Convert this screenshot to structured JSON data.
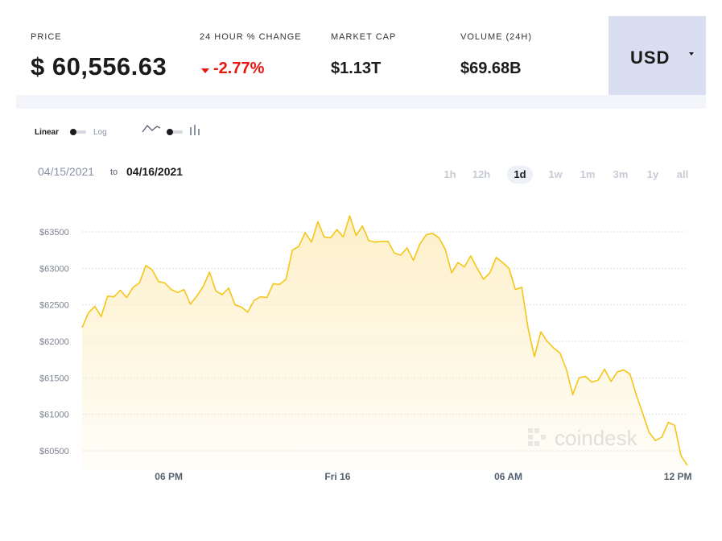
{
  "stats": {
    "price_label": "PRICE",
    "price_value": "$ 60,556.63",
    "change_label": "24 HOUR % CHANGE",
    "change_value": "-2.77%",
    "change_color": "#e7160f",
    "marketcap_label": "MARKET CAP",
    "marketcap_value": "$1.13T",
    "volume_label": "VOLUME (24H)",
    "volume_value": "$69.68B"
  },
  "currency": {
    "label": "USD",
    "icon": "caret-down-icon"
  },
  "controls": {
    "linear_label": "Linear",
    "log_label": "Log",
    "line_icon": "line-chart-icon",
    "bar_icon": "bar-chart-icon"
  },
  "date_range": {
    "start": "04/15/2021",
    "to": "to",
    "end": "04/16/2021"
  },
  "ranges": [
    {
      "label": "1h",
      "active": false
    },
    {
      "label": "12h",
      "active": false
    },
    {
      "label": "1d",
      "active": true
    },
    {
      "label": "1w",
      "active": false
    },
    {
      "label": "1m",
      "active": false
    },
    {
      "label": "3m",
      "active": false
    },
    {
      "label": "1y",
      "active": false
    },
    {
      "label": "all",
      "active": false
    }
  ],
  "watermark": "coindesk",
  "colors": {
    "line": "#f5c518",
    "fill_top": "#fdefc6",
    "grid": "#dde1e8",
    "active_range_bg": "#edf0f7"
  },
  "chart_data": {
    "type": "area",
    "title": "",
    "xlabel": "",
    "ylabel": "",
    "ylim": [
      60500,
      63500
    ],
    "y_ticks": [
      "$63500",
      "$63000",
      "$62500",
      "$62000",
      "$61500",
      "$61000",
      "$60500"
    ],
    "y_tick_values": [
      63500,
      63000,
      62500,
      62000,
      61500,
      61000,
      60500
    ],
    "x_ticks": [
      "06 PM",
      "Fri 16",
      "06 AM",
      "12 PM"
    ],
    "x_tick_index": [
      13.6,
      40.1,
      66.9,
      93.5
    ],
    "series": [
      {
        "values": [
          62190,
          62390,
          62480,
          62340,
          62620,
          62610,
          62700,
          62600,
          62740,
          62800,
          63040,
          62980,
          62820,
          62800,
          62710,
          62670,
          62710,
          62510,
          62620,
          62750,
          62950,
          62690,
          62640,
          62730,
          62500,
          62470,
          62400,
          62560,
          62610,
          62600,
          62790,
          62780,
          62850,
          63250,
          63300,
          63490,
          63360,
          63640,
          63430,
          63420,
          63530,
          63430,
          63720,
          63450,
          63580,
          63380,
          63360,
          63370,
          63370,
          63210,
          63180,
          63280,
          63110,
          63330,
          63460,
          63480,
          63420,
          63260,
          62940,
          63080,
          63020,
          63170,
          63000,
          62850,
          62940,
          63150,
          63080,
          63000,
          62710,
          62740,
          62180,
          61790,
          62130,
          62000,
          61910,
          61840,
          61620,
          61270,
          61500,
          61520,
          61440,
          61470,
          61620,
          61450,
          61580,
          61610,
          61550,
          61260,
          61010,
          60750,
          60640,
          60690,
          60890,
          60850,
          60430,
          60300
        ]
      }
    ]
  }
}
